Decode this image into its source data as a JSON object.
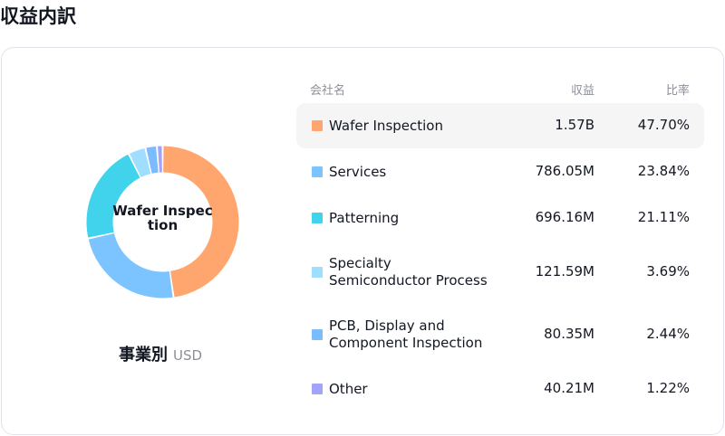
{
  "page": {
    "title": "収益内訳"
  },
  "caption": {
    "title": "事業別",
    "unit": "USD"
  },
  "donut": {
    "center_label": "Wafer Inspection"
  },
  "table": {
    "headers": {
      "name": "会社名",
      "revenue": "収益",
      "ratio": "比率"
    }
  },
  "colors": {
    "wafer": "#ffa66f",
    "services": "#7bc4ff",
    "patterning": "#40d3eb",
    "specialty": "#9fdeff",
    "pcb": "#7bbcff",
    "other": "#a4a3fc"
  },
  "chart_data": {
    "type": "pie",
    "variant": "donut",
    "title": "",
    "categories": [
      "Wafer Inspection",
      "Services",
      "Patterning",
      "Specialty Semiconductor Process",
      "PCB, Display and Component Inspection",
      "Other"
    ],
    "name_lines": [
      [
        "Wafer Inspection"
      ],
      [
        "Services"
      ],
      [
        "Patterning"
      ],
      [
        "Specialty",
        "Semiconductor Process"
      ],
      [
        "PCB, Display and",
        "Component Inspection"
      ],
      [
        "Other"
      ]
    ],
    "revenue_labels": [
      "1.57B",
      "786.05M",
      "696.16M",
      "121.59M",
      "80.35M",
      "40.21M"
    ],
    "values": [
      47.7,
      23.84,
      21.11,
      3.69,
      2.44,
      1.22
    ],
    "ratio_labels": [
      "47.70%",
      "23.84%",
      "21.11%",
      "3.69%",
      "2.44%",
      "1.22%"
    ],
    "colors": [
      "#ffa66f",
      "#7bc4ff",
      "#40d3eb",
      "#9fdeff",
      "#7bbcff",
      "#a4a3fc"
    ],
    "highlighted": "Wafer Inspection",
    "legend": "right"
  }
}
